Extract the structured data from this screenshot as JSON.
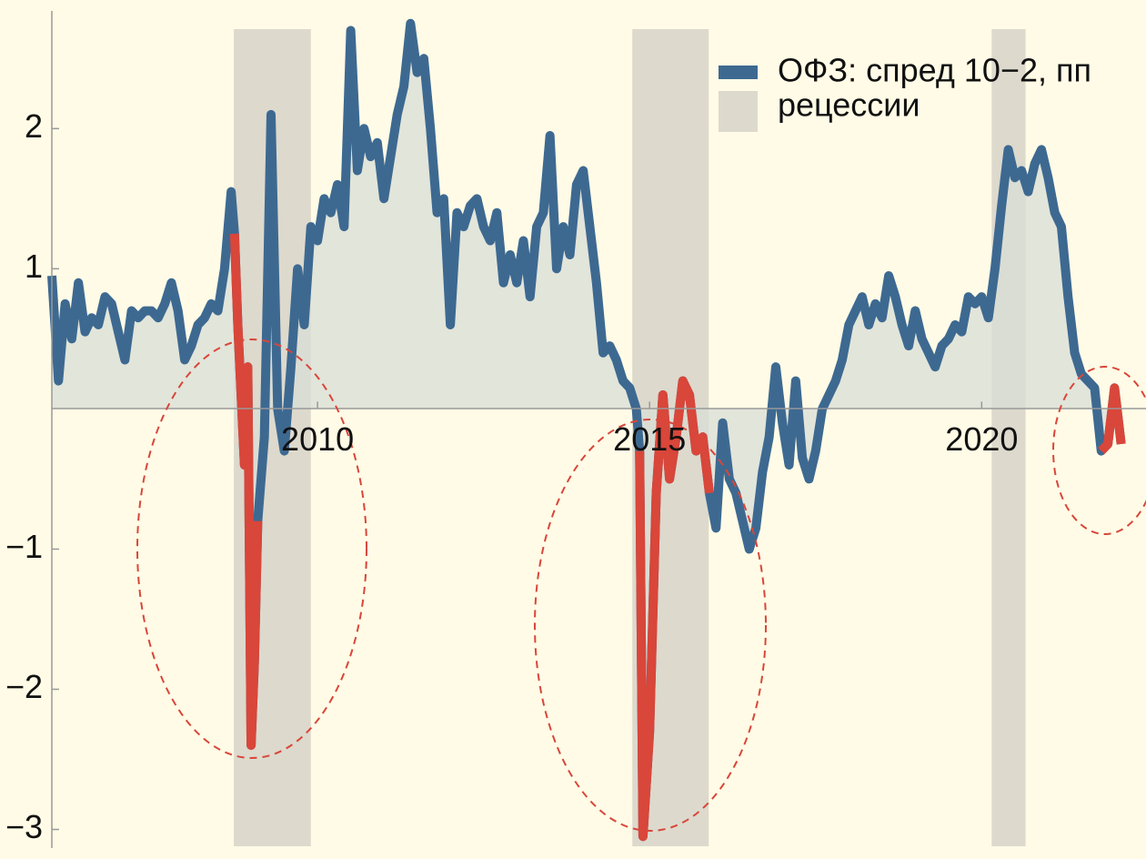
{
  "chart_data": {
    "type": "line",
    "x": [
      2006.0,
      2006.1,
      2006.2,
      2006.3,
      2006.4,
      2006.5,
      2006.6,
      2006.7,
      2006.8,
      2006.9,
      2007.0,
      2007.1,
      2007.2,
      2007.3,
      2007.4,
      2007.5,
      2007.6,
      2007.7,
      2007.8,
      2007.9,
      2008.0,
      2008.1,
      2008.2,
      2008.3,
      2008.4,
      2008.5,
      2008.6,
      2008.7,
      2008.75,
      2008.8,
      2008.9,
      2008.95,
      2009.0,
      2009.05,
      2009.1,
      2009.2,
      2009.3,
      2009.4,
      2009.5,
      2009.6,
      2009.7,
      2009.8,
      2009.9,
      2010.0,
      2010.1,
      2010.2,
      2010.3,
      2010.4,
      2010.5,
      2010.6,
      2010.7,
      2010.8,
      2010.9,
      2011.0,
      2011.1,
      2011.2,
      2011.3,
      2011.4,
      2011.5,
      2011.6,
      2011.7,
      2011.8,
      2011.9,
      2012.0,
      2012.1,
      2012.2,
      2012.3,
      2012.4,
      2012.5,
      2012.6,
      2012.7,
      2012.8,
      2012.9,
      2013.0,
      2013.1,
      2013.2,
      2013.3,
      2013.4,
      2013.5,
      2013.6,
      2013.7,
      2013.8,
      2013.9,
      2014.0,
      2014.1,
      2014.2,
      2014.3,
      2014.4,
      2014.5,
      2014.6,
      2014.7,
      2014.8,
      2014.85,
      2014.9,
      2015.0,
      2015.1,
      2015.2,
      2015.3,
      2015.4,
      2015.5,
      2015.6,
      2015.7,
      2015.8,
      2015.9,
      2016.0,
      2016.1,
      2016.2,
      2016.3,
      2016.4,
      2016.5,
      2016.6,
      2016.7,
      2016.8,
      2016.9,
      2017.0,
      2017.1,
      2017.2,
      2017.3,
      2017.4,
      2017.5,
      2017.6,
      2017.7,
      2017.8,
      2017.9,
      2018.0,
      2018.1,
      2018.2,
      2018.3,
      2018.4,
      2018.5,
      2018.6,
      2018.7,
      2018.8,
      2018.9,
      2019.0,
      2019.1,
      2019.2,
      2019.3,
      2019.4,
      2019.5,
      2019.6,
      2019.7,
      2019.8,
      2019.9,
      2020.0,
      2020.1,
      2020.2,
      2020.3,
      2020.4,
      2020.5,
      2020.6,
      2020.7,
      2020.8,
      2020.9,
      2021.0,
      2021.1,
      2021.2,
      2021.3,
      2021.4,
      2021.5,
      2021.6,
      2021.7,
      2021.8,
      2021.9,
      2022.0,
      2022.1
    ],
    "series": [
      {
        "name": "ОФЗ: спред 10−2, пп",
        "color": "#3d6991",
        "values": [
          0.95,
          0.2,
          0.75,
          0.5,
          0.9,
          0.55,
          0.65,
          0.6,
          0.8,
          0.75,
          0.55,
          0.35,
          0.7,
          0.65,
          0.7,
          0.7,
          0.65,
          0.75,
          0.9,
          0.7,
          0.35,
          0.45,
          0.6,
          0.65,
          0.75,
          0.7,
          1.0,
          1.55,
          1.25,
          0.6,
          -0.4,
          0.3,
          -2.4,
          -1.8,
          -0.8,
          -0.2,
          2.1,
          0.0,
          -0.3,
          0.3,
          1.0,
          0.6,
          1.3,
          1.2,
          1.5,
          1.4,
          1.6,
          1.3,
          2.7,
          1.7,
          2.0,
          1.8,
          1.9,
          1.5,
          1.8,
          2.1,
          2.3,
          2.75,
          2.4,
          2.5,
          2.0,
          1.4,
          1.5,
          0.6,
          1.4,
          1.3,
          1.45,
          1.5,
          1.3,
          1.2,
          1.4,
          0.9,
          1.1,
          0.9,
          1.2,
          0.8,
          1.3,
          1.4,
          1.95,
          1.0,
          1.3,
          1.1,
          1.6,
          1.7,
          1.3,
          0.9,
          0.4,
          0.45,
          0.35,
          0.2,
          0.15,
          0.0,
          -0.3,
          -3.05,
          -2.3,
          -0.6,
          0.1,
          -0.5,
          -0.2,
          0.2,
          0.1,
          -0.3,
          -0.2,
          -0.6,
          -0.85,
          -0.1,
          -0.5,
          -0.6,
          -0.8,
          -1.0,
          -0.85,
          -0.45,
          -0.2,
          0.3,
          -0.1,
          -0.4,
          0.2,
          -0.35,
          -0.5,
          -0.3,
          0.0,
          0.1,
          0.2,
          0.35,
          0.6,
          0.7,
          0.8,
          0.6,
          0.75,
          0.65,
          0.95,
          0.8,
          0.6,
          0.45,
          0.7,
          0.5,
          0.4,
          0.3,
          0.45,
          0.5,
          0.6,
          0.55,
          0.8,
          0.75,
          0.8,
          0.65,
          1.0,
          1.45,
          1.85,
          1.65,
          1.7,
          1.55,
          1.75,
          1.85,
          1.65,
          1.4,
          1.3,
          0.8,
          0.4,
          0.25,
          0.2,
          0.15,
          -0.3,
          -0.25,
          0.15,
          -0.25
        ]
      }
    ],
    "highlight_color": "#d9463a",
    "highlight_ranges": [
      [
        2008.72,
        2009.12
      ],
      [
        2014.82,
        2015.92
      ],
      [
        2021.75,
        2022.2
      ]
    ],
    "bands": {
      "name": "рецессии",
      "color": "#ddd9cd",
      "ranges": [
        [
          2008.74,
          2009.9
        ],
        [
          2014.74,
          2015.89
        ],
        [
          2020.15,
          2020.66
        ]
      ]
    },
    "area_color": "#d8ded6",
    "xlim": [
      2006,
      2022.2
    ],
    "xticks": [
      2010,
      2015,
      2020
    ],
    "ylim": [
      -3.12,
      2.82
    ],
    "yticks": [
      {
        "value": -3,
        "label": "−3"
      },
      {
        "value": -2,
        "label": "−2"
      },
      {
        "value": -1,
        "label": "−1"
      },
      1,
      2
    ],
    "legend": "top-right"
  }
}
